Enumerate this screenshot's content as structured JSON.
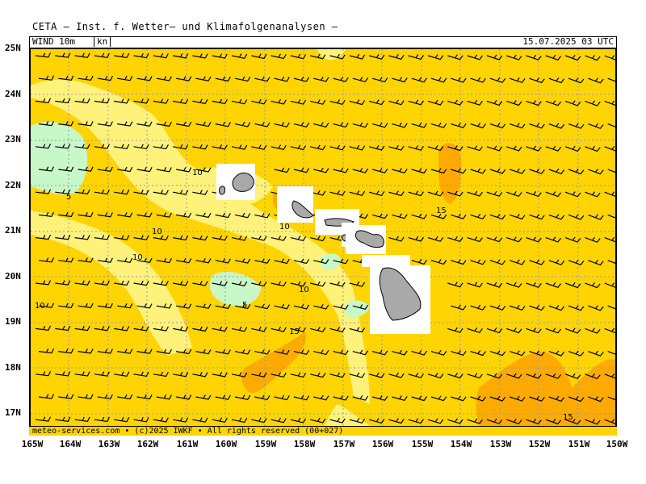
{
  "header": {
    "title": "CETA — Inst. f. Wetter— und Klimafolgenanalysen —",
    "variable": "WIND 10m",
    "unit": "kn",
    "valid_time": "15.07.2025 03 UTC"
  },
  "footer": "meteo-services.com • (c)2025 IWKF • All rights reserved (00+027)",
  "axes": {
    "lat_labels": [
      "25N",
      "24N",
      "23N",
      "22N",
      "21N",
      "20N",
      "19N",
      "18N",
      "17N"
    ],
    "lon_labels": [
      "165W",
      "164W",
      "163W",
      "162W",
      "161W",
      "160W",
      "159W",
      "158W",
      "157W",
      "156W",
      "155W",
      "154W",
      "153W",
      "152W",
      "151W",
      "150W"
    ]
  },
  "contour_labels": [
    "10",
    "5",
    "10",
    "10",
    "10",
    "5",
    "10",
    "15",
    "15",
    "10",
    "15"
  ],
  "colors": {
    "band_0_5": "#c8f7c8",
    "band_5_10": "#fff27a",
    "band_10_15": "#ffd400",
    "band_15_20": "#ffaa00",
    "land": "#a9a9a9",
    "grid": "#9a9a9a"
  },
  "islands": [
    "Kauai",
    "Oahu",
    "Molokai",
    "Lanai",
    "Maui",
    "Kahoolawe",
    "Hawaii"
  ]
}
